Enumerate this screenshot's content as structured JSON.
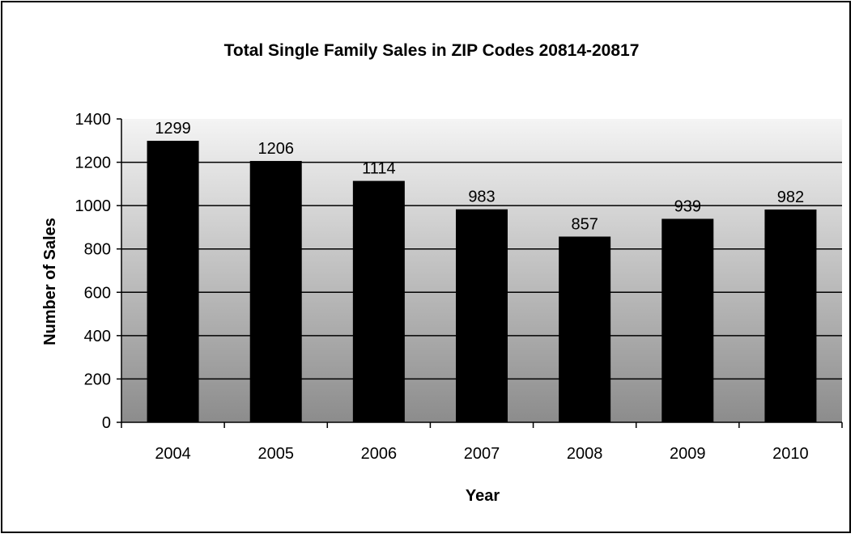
{
  "chart_data": {
    "type": "bar",
    "title": "Total Single Family Sales in ZIP Codes 20814-20817",
    "xlabel": "Year",
    "ylabel": "Number of Sales",
    "categories": [
      "2004",
      "2005",
      "2006",
      "2007",
      "2008",
      "2009",
      "2010"
    ],
    "values": [
      1299,
      1206,
      1114,
      983,
      857,
      939,
      982
    ],
    "ylim": [
      0,
      1400
    ],
    "yticks": [
      0,
      200,
      400,
      600,
      800,
      1000,
      1200,
      1400
    ],
    "grid": true,
    "legend": "none",
    "colors": {
      "bar": "#000000",
      "plot_top": "#f4f4f4",
      "plot_bottom": "#8c8c8c",
      "gridline": "#000000"
    }
  }
}
